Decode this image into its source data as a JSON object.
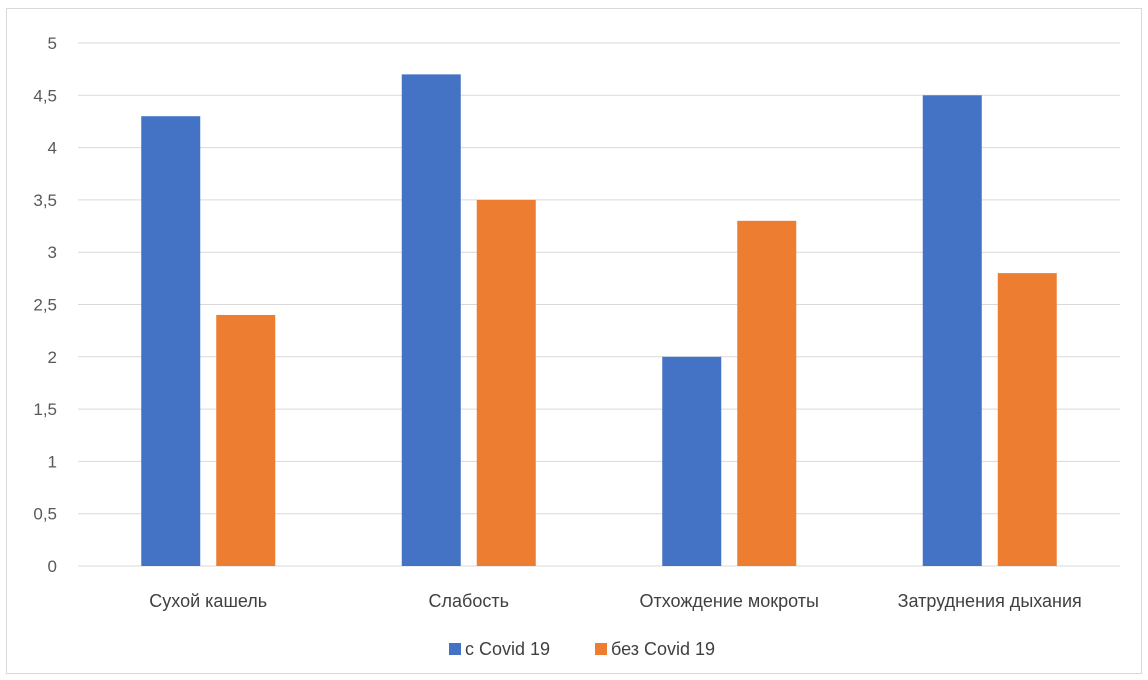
{
  "chart_data": {
    "type": "bar",
    "categories": [
      "Сухой кашель",
      "Слабость",
      "Отхождение мокроты",
      "Затруднения дыхания"
    ],
    "series": [
      {
        "name": "с Covid 19",
        "values": [
          4.3,
          4.7,
          2.0,
          4.5
        ],
        "color": "#4472C4"
      },
      {
        "name": "без Covid 19",
        "values": [
          2.4,
          3.5,
          3.3,
          2.8
        ],
        "color": "#ED7D31"
      }
    ],
    "yticks": [
      "0",
      "0,5",
      "1",
      "1,5",
      "2",
      "2,5",
      "3",
      "3,5",
      "4",
      "4,5",
      "5"
    ],
    "ylim": [
      0,
      5
    ],
    "grid": true,
    "legend": "bottom",
    "gridline_color": "#d9d9d9"
  }
}
